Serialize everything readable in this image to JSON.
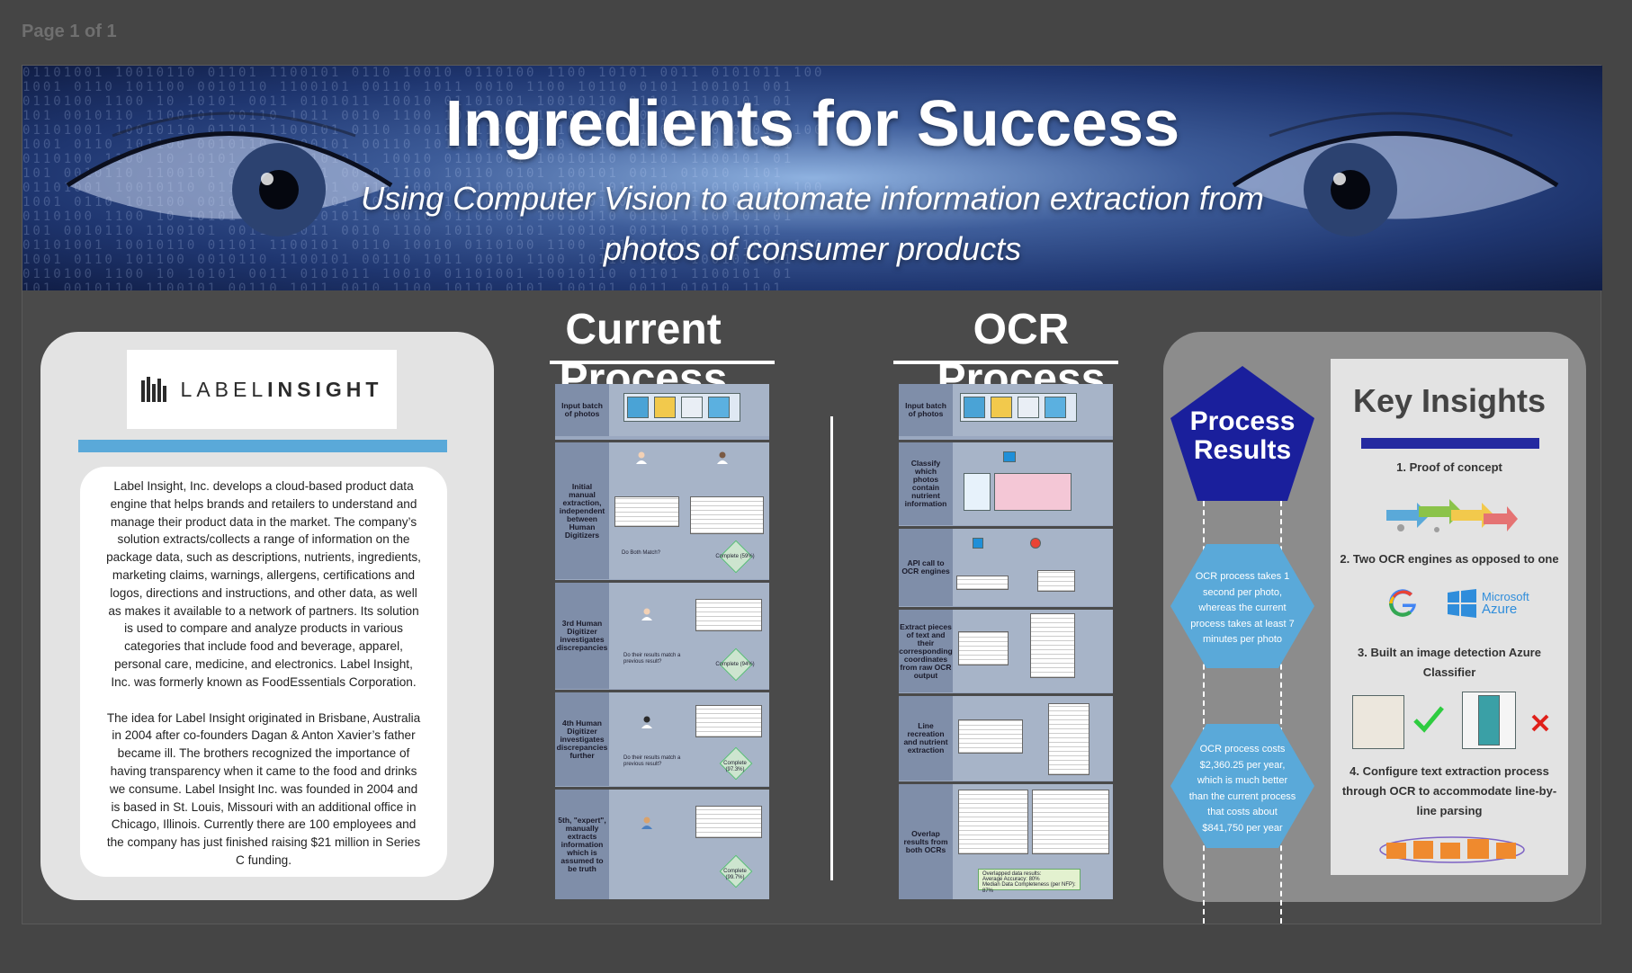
{
  "viewer": {
    "page_indicator": "Page 1 of 1"
  },
  "banner": {
    "title": "Ingredients for Success",
    "subtitle": "Using Computer Vision to automate information extraction from photos of consumer products"
  },
  "company": {
    "logo_text_light": "LABEL",
    "logo_text_bold": "INSIGHT",
    "about": [
      "Label Insight, Inc. develops a cloud-based product data engine that helps brands and retailers to understand and manage their product data in the market. The company’s solution extracts/collects a range of information on the package data, such as descriptions, nutrients, ingredients, marketing claims, warnings, allergens, certifications and logos, directions and instructions, and other data, as well as makes it available to a network of partners. Its solution is used to compare and analyze products in various categories that include food and beverage, apparel, personal care, medicine, and electronics. Label Insight, Inc. was formerly known as FoodEssentials Corporation.",
      "The idea for Label Insight originated in Brisbane, Australia in 2004 after co-founders Dagan & Anton Xavier’s father became ill. The brothers recognized the importance of having transparency when it came to the food and drinks we consume. Label Insight Inc. was founded in 2004 and is based in St. Louis, Missouri with an additional office in Chicago, Illinois. Currently there are 100 employees and the company has just finished raising $21 million in Series C funding."
    ]
  },
  "current_process": {
    "title": "Current Process",
    "steps": [
      {
        "label": "Input batch of photos"
      },
      {
        "label": "Initial manual extraction, independent between Human Digitizers",
        "question": "Do Both Match?",
        "result": "Complete (59%)"
      },
      {
        "label": "3rd Human Digitizer investigates discrepancies",
        "question": "Do their results match a previous result?",
        "result": "Complete (94%)"
      },
      {
        "label": "4th Human Digitizer investigates discrepancies further",
        "question": "Do their results match a previous result?",
        "result": "Complete (97.3%)"
      },
      {
        "label": "5th, \"expert\", manually extracts information which is assumed to be truth",
        "result": "Complete (99.7%)"
      }
    ]
  },
  "ocr_process": {
    "title": "OCR Process",
    "steps": [
      {
        "label": "Input batch of photos"
      },
      {
        "label": "Classify which photos contain nutrient information"
      },
      {
        "label": "API call to OCR engines"
      },
      {
        "label": "Extract pieces of text and their corresponding coordinates from raw OCR output"
      },
      {
        "label": "Line recreation and nutrient extraction"
      },
      {
        "label": "Overlap results from both OCRs",
        "note_lines": [
          "Overlapped data results:",
          "Average Accuracy: 80%",
          "Median Data Completeness (per NFP): 87%"
        ]
      }
    ]
  },
  "results": {
    "title": "Process Results",
    "items": [
      "OCR process takes 1 second per photo, whereas the current process takes at least 7 minutes per photo",
      "OCR process costs $2,360.25 per year, which is much better than the current process that costs about $841,750 per year"
    ],
    "colors": {
      "pentagon": "#1a1f9c",
      "hexagon": "#5aa9d9"
    }
  },
  "insights": {
    "title": "Key Insights",
    "items": [
      "1. Proof of concept",
      "2. Two OCR engines as opposed to one",
      "3. Built an image detection Azure Classifier",
      "4. Configure text extraction process through OCR to accommodate line-by-line parsing"
    ],
    "azure_label": "Microsoft Azure",
    "azure_line1": "Microsoft",
    "azure_line2": "Azure"
  }
}
